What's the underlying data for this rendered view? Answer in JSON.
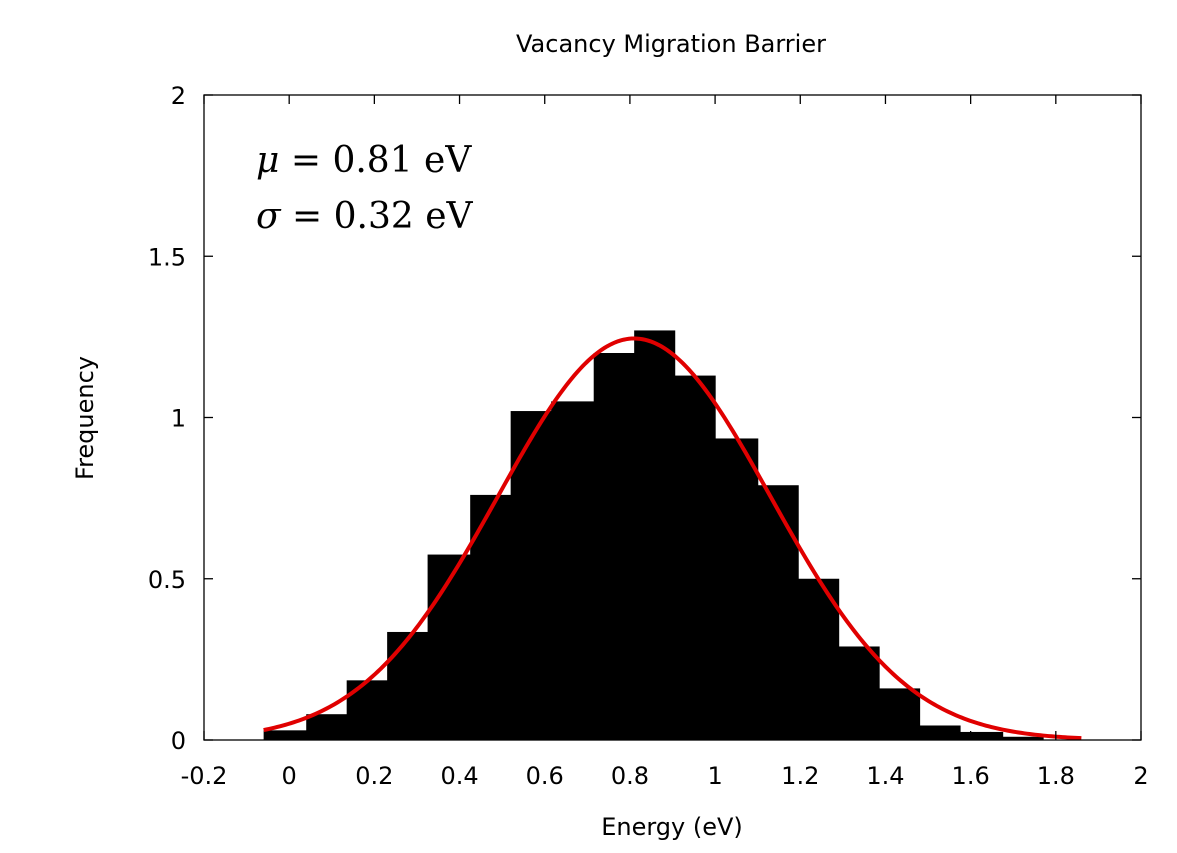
{
  "chart_data": {
    "type": "bar",
    "title": "Vacancy Migration Barrier",
    "xlabel": "Energy (eV)",
    "ylabel": "Frequency",
    "xlim": [
      -0.2,
      2
    ],
    "ylim": [
      0,
      2
    ],
    "xticks": [
      "-0.2",
      "0",
      "0.2",
      "0.4",
      "0.6",
      "0.8",
      "1",
      "1.2",
      "1.4",
      "1.6",
      "1.8",
      "2"
    ],
    "yticks": [
      "0",
      "0.5",
      "1",
      "1.5",
      "2"
    ],
    "grid": false,
    "legend": "none",
    "bar_color": "#000000",
    "fit_color": "#e00000",
    "bins": [
      {
        "x0": -0.06,
        "x1": 0.04,
        "value": 0.03
      },
      {
        "x0": 0.04,
        "x1": 0.135,
        "value": 0.08
      },
      {
        "x0": 0.135,
        "x1": 0.23,
        "value": 0.185
      },
      {
        "x0": 0.23,
        "x1": 0.325,
        "value": 0.335
      },
      {
        "x0": 0.325,
        "x1": 0.425,
        "value": 0.575
      },
      {
        "x0": 0.425,
        "x1": 0.52,
        "value": 0.76
      },
      {
        "x0": 0.52,
        "x1": 0.615,
        "value": 1.02
      },
      {
        "x0": 0.615,
        "x1": 0.715,
        "value": 1.05
      },
      {
        "x0": 0.715,
        "x1": 0.81,
        "value": 1.2
      },
      {
        "x0": 0.81,
        "x1": 0.905,
        "value": 1.27
      },
      {
        "x0": 0.905,
        "x1": 1.0,
        "value": 1.13
      },
      {
        "x0": 1.0,
        "x1": 1.1,
        "value": 0.935
      },
      {
        "x0": 1.1,
        "x1": 1.195,
        "value": 0.79
      },
      {
        "x0": 1.195,
        "x1": 1.29,
        "value": 0.5
      },
      {
        "x0": 1.29,
        "x1": 1.385,
        "value": 0.29
      },
      {
        "x0": 1.385,
        "x1": 1.48,
        "value": 0.16
      },
      {
        "x0": 1.48,
        "x1": 1.575,
        "value": 0.045
      },
      {
        "x0": 1.575,
        "x1": 1.675,
        "value": 0.025
      },
      {
        "x0": 1.675,
        "x1": 1.77,
        "value": 0.01
      }
    ],
    "fit": {
      "name": "Gaussian fit",
      "mu": 0.81,
      "sigma": 0.32,
      "amplitude": 1.245,
      "x_start": -0.06,
      "x_end": 1.86
    },
    "annotations": [
      {
        "symbol": "μ",
        "text": " = 0.81 eV"
      },
      {
        "symbol": "σ",
        "text": " = 0.32 eV"
      }
    ]
  }
}
